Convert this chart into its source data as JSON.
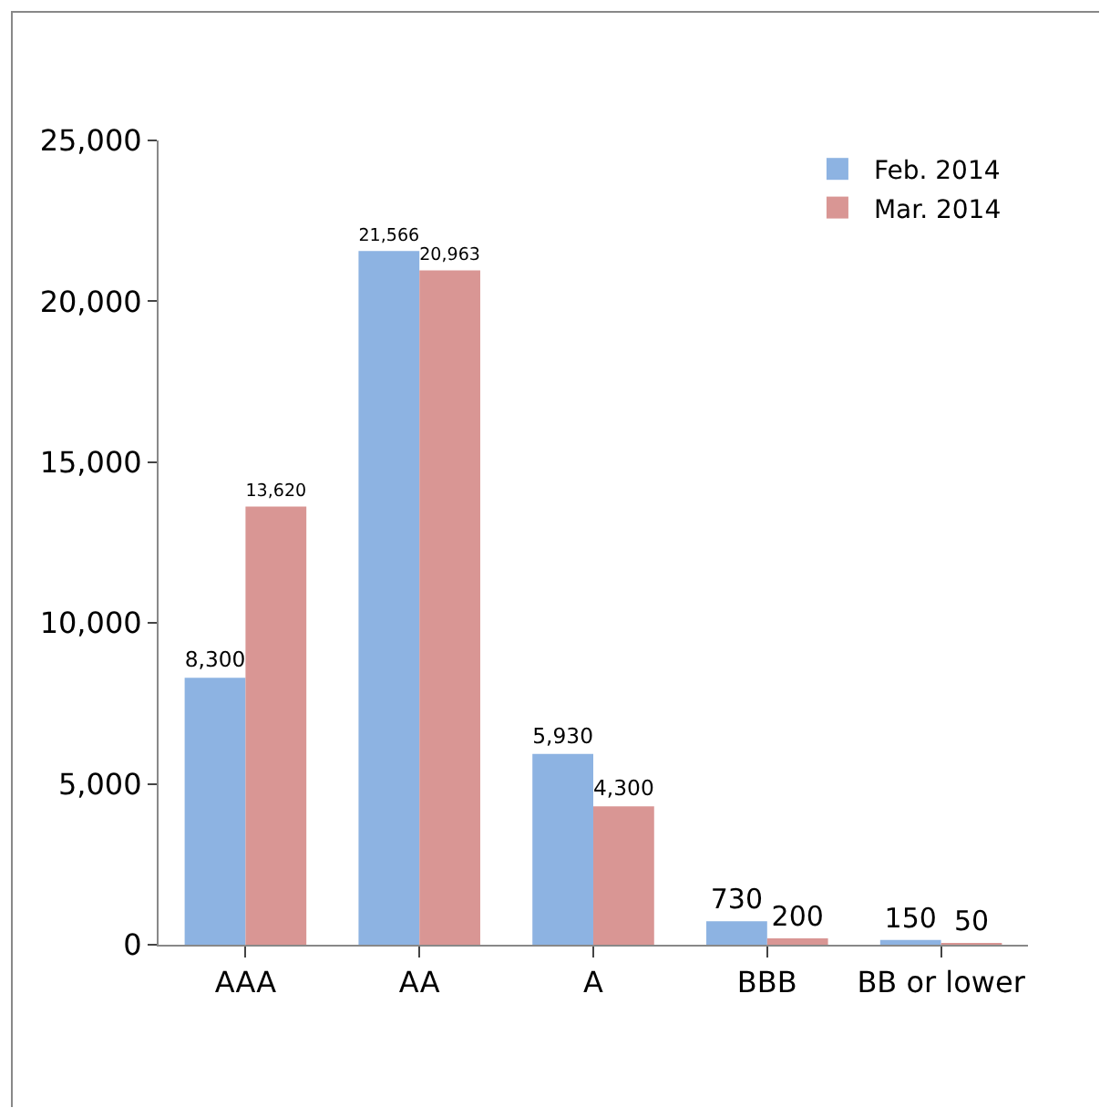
{
  "chart_data": {
    "type": "bar",
    "categories": [
      "AAA",
      "AA",
      "A",
      "BBB",
      "BB or lower"
    ],
    "series": [
      {
        "name": "Feb. 2014",
        "color": "#8db3e2",
        "values": [
          8300,
          21566,
          5930,
          730,
          150
        ],
        "value_labels": [
          "8,300",
          "21,566",
          "5,930",
          "730",
          "150"
        ]
      },
      {
        "name": "Mar. 2014",
        "color": "#d99694",
        "values": [
          13620,
          20963,
          4300,
          200,
          50
        ],
        "value_labels": [
          "13,620",
          "20,963",
          "4,300",
          "200",
          "50"
        ]
      }
    ],
    "ylim": [
      0,
      25000
    ],
    "yticks": [
      {
        "value": 0,
        "label": "0"
      },
      {
        "value": 5000,
        "label": "5,000"
      },
      {
        "value": 10000,
        "label": "10,000"
      },
      {
        "value": 15000,
        "label": "15,000"
      },
      {
        "value": 20000,
        "label": "20,000"
      },
      {
        "value": 25000,
        "label": "25,000"
      }
    ],
    "grid": false,
    "legend": "top right"
  }
}
